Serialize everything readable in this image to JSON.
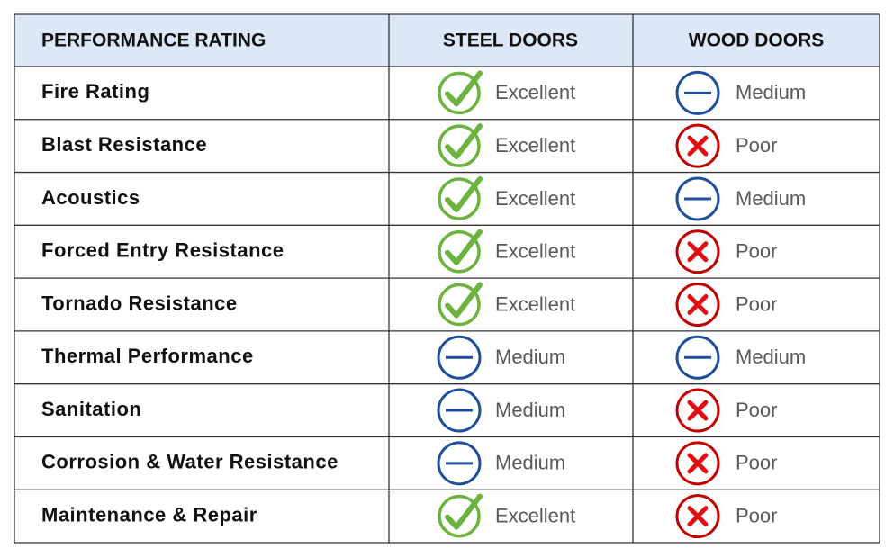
{
  "table": {
    "header": [
      "PERFORMANCE RATING",
      "STEEL DOORS",
      "WOOD DOORS"
    ],
    "rows": [
      [
        "Fire Rating",
        "Excellent",
        "Medium"
      ],
      [
        "Blast Resistance",
        "Excellent",
        "Poor"
      ],
      [
        "Acoustics",
        "Excellent",
        "Medium"
      ],
      [
        "Forced Entry Resistance",
        "Excellent",
        "Poor"
      ],
      [
        "Tornado Resistance",
        "Excellent",
        "Poor"
      ],
      [
        "Thermal Performance",
        "Medium",
        "Medium"
      ],
      [
        "Sanitation",
        "Medium",
        "Poor"
      ],
      [
        "Corrosion & Water Resistance",
        "Medium",
        "Poor"
      ],
      [
        "Maintenance & Repair",
        "Excellent",
        "Poor"
      ]
    ]
  }
}
